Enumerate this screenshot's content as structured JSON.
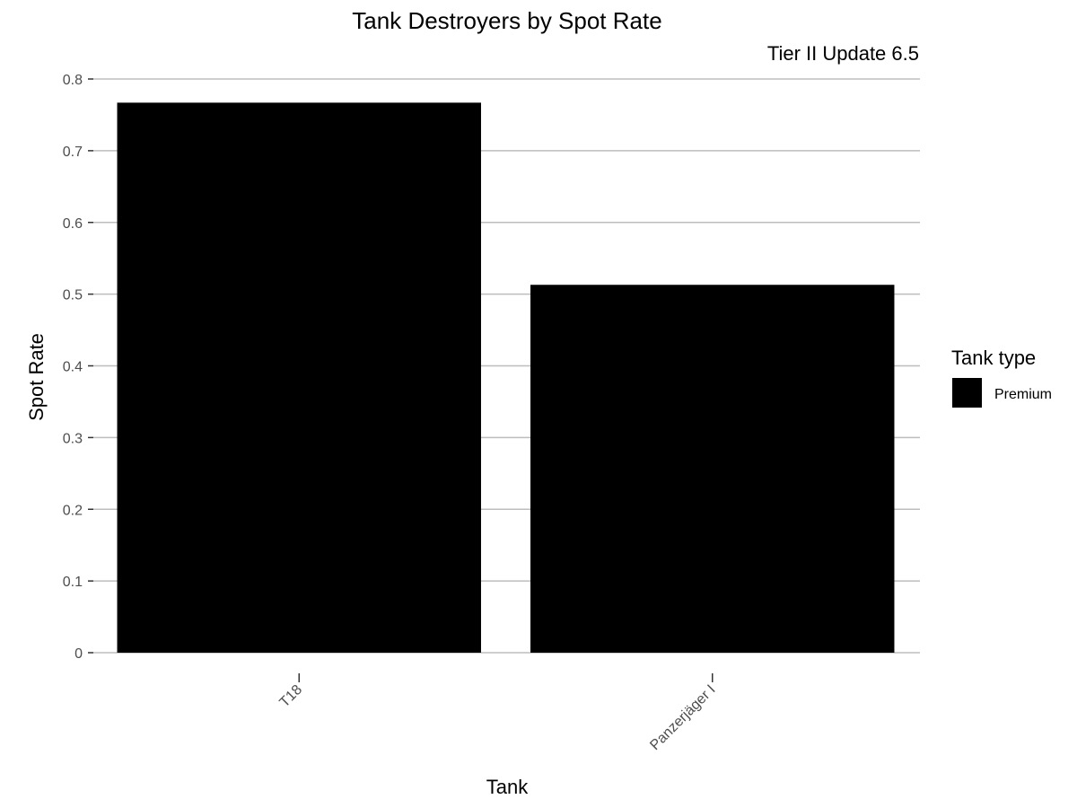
{
  "chart_data": {
    "type": "bar",
    "title": "Tank Destroyers by Spot Rate",
    "subtitle": "Tier II Update 6.5",
    "xlabel": "Tank",
    "ylabel": "Spot Rate",
    "categories": [
      "T18",
      "Panzerjäger I"
    ],
    "series": [
      {
        "name": "Premium",
        "values": [
          0.767,
          0.513
        ],
        "color": "#000000"
      }
    ],
    "ylim": [
      0,
      0.8
    ],
    "yticks": [
      0,
      0.1,
      0.2,
      0.3,
      0.4,
      0.5,
      0.6,
      0.7,
      0.8
    ],
    "ytick_labels": [
      "0",
      "0.1",
      "0.2",
      "0.3",
      "0.4",
      "0.5",
      "0.6",
      "0.7",
      "0.8"
    ],
    "grid": true,
    "legend": {
      "title": "Tank type",
      "placement": "right"
    }
  }
}
